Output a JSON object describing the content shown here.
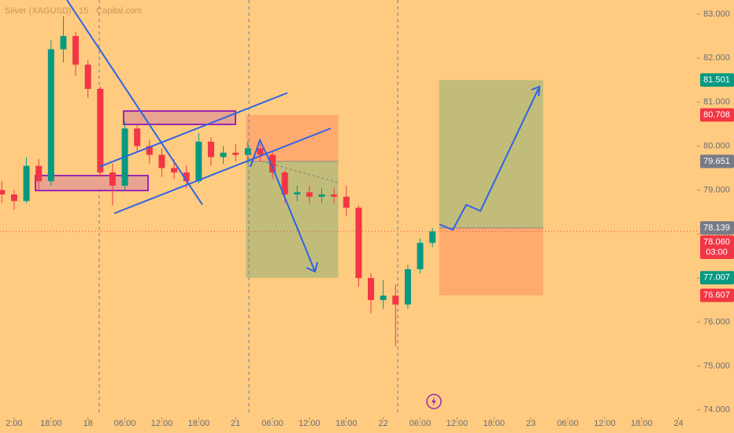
{
  "chart_data": {
    "type": "candlestick",
    "title": "Silver (XAGUSD) · 15 · Capital.com",
    "up_color": "#089981",
    "down_color": "#f23645",
    "xlim": [
      -14.3,
      99
    ],
    "ylim": [
      73.8,
      83.32
    ],
    "xticks": [
      {
        "value": -12,
        "label": "2:00"
      },
      {
        "value": -6,
        "label": "18:00"
      },
      {
        "value": 0,
        "label": "18"
      },
      {
        "value": 6,
        "label": "06:00"
      },
      {
        "value": 12,
        "label": "12:00"
      },
      {
        "value": 18,
        "label": "18:00"
      },
      {
        "value": 24,
        "label": "21"
      },
      {
        "value": 30,
        "label": "06:00"
      },
      {
        "value": 36,
        "label": "12:00"
      },
      {
        "value": 42,
        "label": "18:00"
      },
      {
        "value": 48,
        "label": "22"
      },
      {
        "value": 54,
        "label": "06:00"
      },
      {
        "value": 60,
        "label": "12:00"
      },
      {
        "value": 66,
        "label": "18:00"
      },
      {
        "value": 72,
        "label": "23"
      },
      {
        "value": 78,
        "label": "06:00"
      },
      {
        "value": 84,
        "label": "12:00"
      },
      {
        "value": 90,
        "label": "18:00"
      },
      {
        "value": 96,
        "label": "24"
      }
    ],
    "yticks": [
      {
        "value": 74,
        "label": "74.000"
      },
      {
        "value": 75,
        "label": "75.000"
      },
      {
        "value": 76,
        "label": "76.000"
      },
      {
        "value": 77,
        "label": "77.000"
      },
      {
        "value": 78,
        "label": "78.000"
      },
      {
        "value": 79,
        "label": "79.000"
      },
      {
        "value": 80,
        "label": "80.000"
      },
      {
        "value": 81,
        "label": "81.000"
      },
      {
        "value": 82,
        "label": "82.000"
      },
      {
        "value": 83,
        "label": "83.000"
      }
    ],
    "x": [
      -14,
      -12,
      -10,
      -8,
      -6,
      -4,
      -2,
      0,
      2,
      4,
      6,
      8,
      10,
      12,
      14,
      16,
      18,
      20,
      22,
      24,
      26,
      28,
      30,
      32,
      34,
      36,
      38,
      40,
      42,
      44,
      46,
      48,
      50,
      52,
      54,
      56
    ],
    "open": [
      79.0,
      78.9,
      78.75,
      79.55,
      79.2,
      82.2,
      82.5,
      81.85,
      81.3,
      79.4,
      79.1,
      80.4,
      80.0,
      79.8,
      79.5,
      79.4,
      79.2,
      80.1,
      79.75,
      79.85,
      79.8,
      79.95,
      79.8,
      79.4,
      78.9,
      78.95,
      78.85,
      78.9,
      78.85,
      78.6,
      77.0,
      76.5,
      76.6,
      76.4,
      77.2,
      77.8
    ],
    "high": [
      79.2,
      79.0,
      79.75,
      79.7,
      82.4,
      82.95,
      82.6,
      81.95,
      81.35,
      79.6,
      80.55,
      80.5,
      80.15,
      79.95,
      79.7,
      79.55,
      80.3,
      80.2,
      80.0,
      80.05,
      80.1,
      80.05,
      79.9,
      79.45,
      79.1,
      79.1,
      79.05,
      79.05,
      79.1,
      78.65,
      77.1,
      76.95,
      76.85,
      77.3,
      77.9,
      78.14
    ],
    "low": [
      78.7,
      78.55,
      78.7,
      79.0,
      79.1,
      81.9,
      81.6,
      81.1,
      79.3,
      78.65,
      79.0,
      79.85,
      79.6,
      79.3,
      79.25,
      79.05,
      79.15,
      79.55,
      79.6,
      79.65,
      79.6,
      79.65,
      79.25,
      78.7,
      78.75,
      78.7,
      78.7,
      78.7,
      78.4,
      76.8,
      76.2,
      76.3,
      75.45,
      76.3,
      77.1,
      77.7
    ],
    "close": [
      78.9,
      78.75,
      79.55,
      79.2,
      82.2,
      82.5,
      81.85,
      81.3,
      79.4,
      79.1,
      80.4,
      80.0,
      79.8,
      79.5,
      79.4,
      79.2,
      80.1,
      79.75,
      79.85,
      79.8,
      79.95,
      79.8,
      79.4,
      78.9,
      78.95,
      78.85,
      78.9,
      78.85,
      78.6,
      77.0,
      76.5,
      76.6,
      76.4,
      77.2,
      77.8,
      78.06
    ],
    "current_price": {
      "value": 78.06,
      "label": "78.060",
      "countdown": "03:00",
      "color": "#f23645"
    },
    "positions": [
      {
        "x_start": 25.7,
        "x_end": 40.7,
        "entry": {
          "value": 79.651,
          "label": "79.651",
          "color": "#787b86"
        },
        "target": {
          "value": 77.007,
          "label": "77.007",
          "color": "#089981"
        },
        "stop": {
          "value": 80.708,
          "label": "80.708",
          "color": "#f23645"
        }
      },
      {
        "x_start": 57.1,
        "x_end": 74.0,
        "entry": {
          "value": 78.139,
          "label": "78.139",
          "color": "#787b86"
        },
        "target": {
          "value": 81.501,
          "label": "81.501",
          "color": "#089981"
        },
        "stop": {
          "value": 76.607,
          "label": "76.607",
          "color": "#f23645"
        }
      }
    ]
  }
}
